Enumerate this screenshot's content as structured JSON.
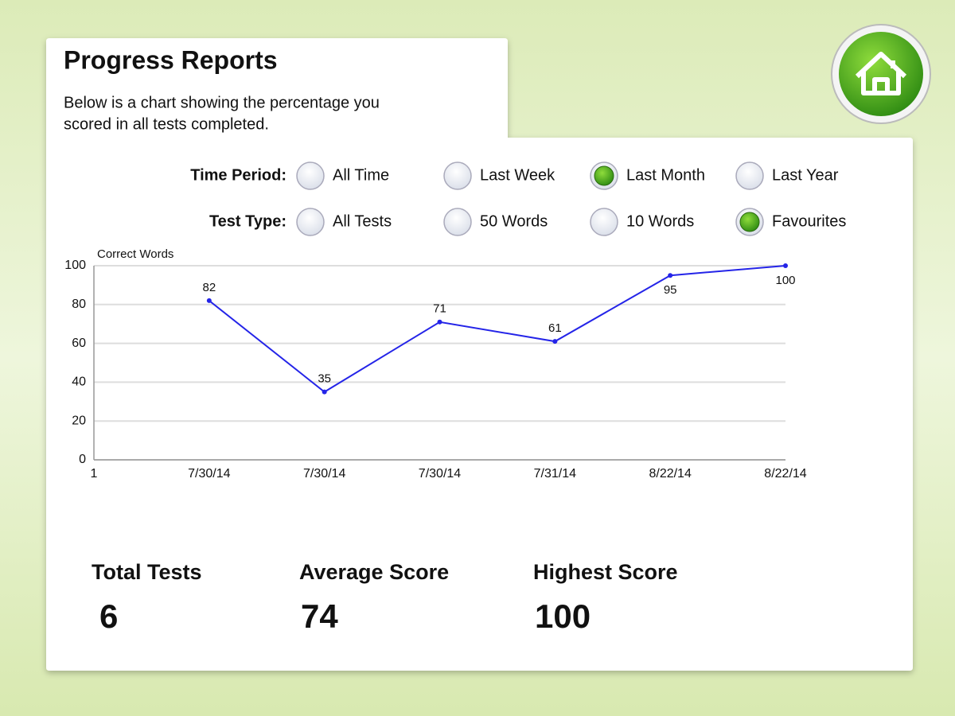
{
  "header": {
    "title": "Progress Reports",
    "description_lines": [
      "Below is a chart showing the percentage you",
      "scored in all tests completed."
    ]
  },
  "filters": [
    {
      "label": "Time Period:",
      "options": [
        "All Time",
        "Last Week",
        "Last Month",
        "Last Year"
      ],
      "selected": 2
    },
    {
      "label": "Test Type:",
      "options": [
        "All Tests",
        "50 Words",
        "10 Words",
        "Favourites"
      ],
      "selected": 3
    }
  ],
  "chart_data": {
    "type": "line",
    "y_label": "Correct Words",
    "categories": [
      "1",
      "7/30/14",
      "7/30/14",
      "7/30/14",
      "7/31/14",
      "8/22/14",
      "8/22/14"
    ],
    "series": [
      {
        "name": "Correct Words",
        "color": "#2424e8",
        "values": [
          null,
          82,
          35,
          71,
          61,
          95,
          100
        ]
      }
    ],
    "ylim": [
      0,
      100
    ],
    "yticks": [
      0,
      20,
      40,
      60,
      80,
      100
    ],
    "grid": true
  },
  "stats": [
    {
      "label": "Total Tests",
      "value": 6
    },
    {
      "label": "Average Score",
      "value": 74
    },
    {
      "label": "Highest Score",
      "value": 100
    }
  ]
}
